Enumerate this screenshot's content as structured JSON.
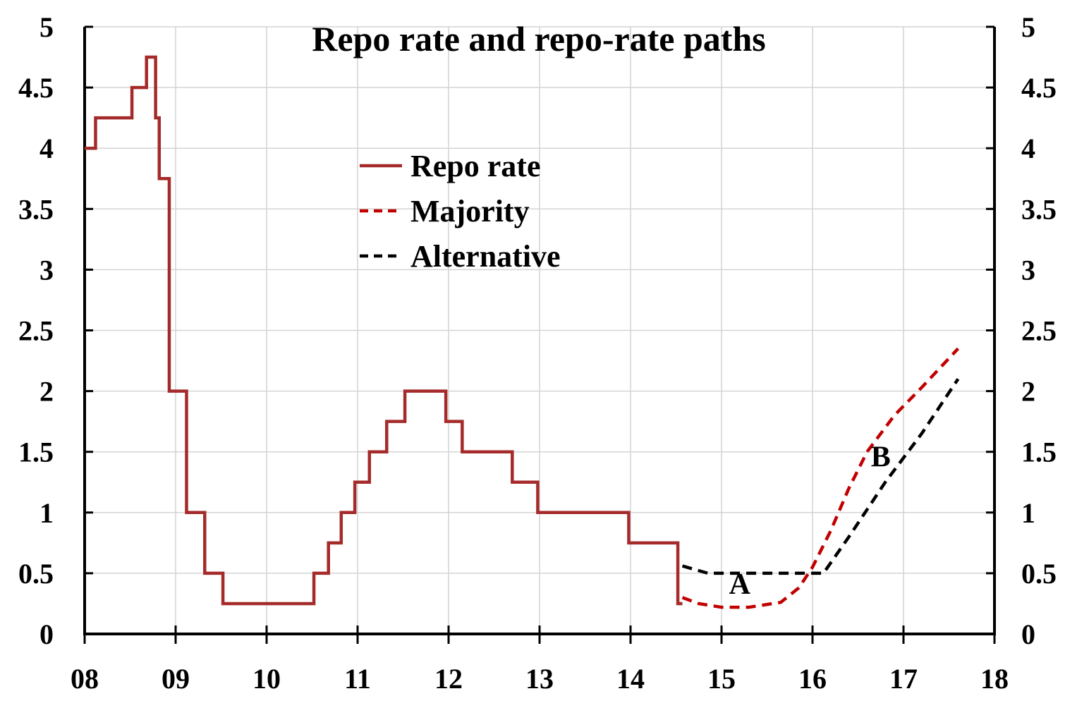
{
  "chart_data": {
    "type": "line",
    "title": "Repo rate and repo-rate paths",
    "xlabel": "",
    "ylabel": "",
    "xlim": [
      2008,
      2018
    ],
    "ylim": [
      0,
      5
    ],
    "grid": true,
    "legend_position": "upper-middle",
    "x_tick_labels": [
      "08",
      "09",
      "10",
      "11",
      "12",
      "13",
      "14",
      "15",
      "16",
      "17",
      "18"
    ],
    "y_tick_labels": [
      "0",
      "0.5",
      "1",
      "1.5",
      "2",
      "2.5",
      "3",
      "3.5",
      "4",
      "4.5",
      "5"
    ],
    "series": [
      {
        "name": "Repo rate",
        "style": "step-solid",
        "color": "#a52a2a",
        "points": [
          [
            2008.0,
            4.0
          ],
          [
            2008.12,
            4.25
          ],
          [
            2008.52,
            4.5
          ],
          [
            2008.68,
            4.75
          ],
          [
            2008.78,
            4.25
          ],
          [
            2008.82,
            3.75
          ],
          [
            2008.93,
            2.0
          ],
          [
            2009.12,
            1.0
          ],
          [
            2009.32,
            0.5
          ],
          [
            2009.52,
            0.25
          ],
          [
            2010.52,
            0.5
          ],
          [
            2010.68,
            0.75
          ],
          [
            2010.82,
            1.0
          ],
          [
            2010.97,
            1.25
          ],
          [
            2011.13,
            1.5
          ],
          [
            2011.32,
            1.75
          ],
          [
            2011.52,
            2.0
          ],
          [
            2011.97,
            1.75
          ],
          [
            2012.15,
            1.5
          ],
          [
            2012.7,
            1.25
          ],
          [
            2012.98,
            1.0
          ],
          [
            2013.98,
            0.75
          ],
          [
            2014.52,
            0.25
          ],
          [
            2014.57,
            0.25
          ]
        ]
      },
      {
        "name": "Majority",
        "style": "dashed",
        "color": "#c00000",
        "points": [
          [
            2014.57,
            0.3
          ],
          [
            2014.75,
            0.25
          ],
          [
            2015.0,
            0.22
          ],
          [
            2015.3,
            0.22
          ],
          [
            2015.65,
            0.26
          ],
          [
            2015.85,
            0.38
          ],
          [
            2016.0,
            0.55
          ],
          [
            2016.2,
            0.85
          ],
          [
            2016.4,
            1.2
          ],
          [
            2016.6,
            1.5
          ],
          [
            2016.9,
            1.8
          ],
          [
            2017.2,
            2.03
          ],
          [
            2017.6,
            2.35
          ]
        ]
      },
      {
        "name": "Alternative",
        "style": "dashed",
        "color": "#000000",
        "points": [
          [
            2014.57,
            0.56
          ],
          [
            2014.85,
            0.5
          ],
          [
            2015.0,
            0.5
          ],
          [
            2016.12,
            0.5
          ],
          [
            2016.4,
            0.8
          ],
          [
            2016.8,
            1.25
          ],
          [
            2017.2,
            1.65
          ],
          [
            2017.6,
            2.1
          ]
        ]
      }
    ],
    "annotations": [
      {
        "text": "A",
        "x": 2015.2,
        "y": 0.33
      },
      {
        "text": "B",
        "x": 2016.75,
        "y": 1.38
      }
    ]
  }
}
